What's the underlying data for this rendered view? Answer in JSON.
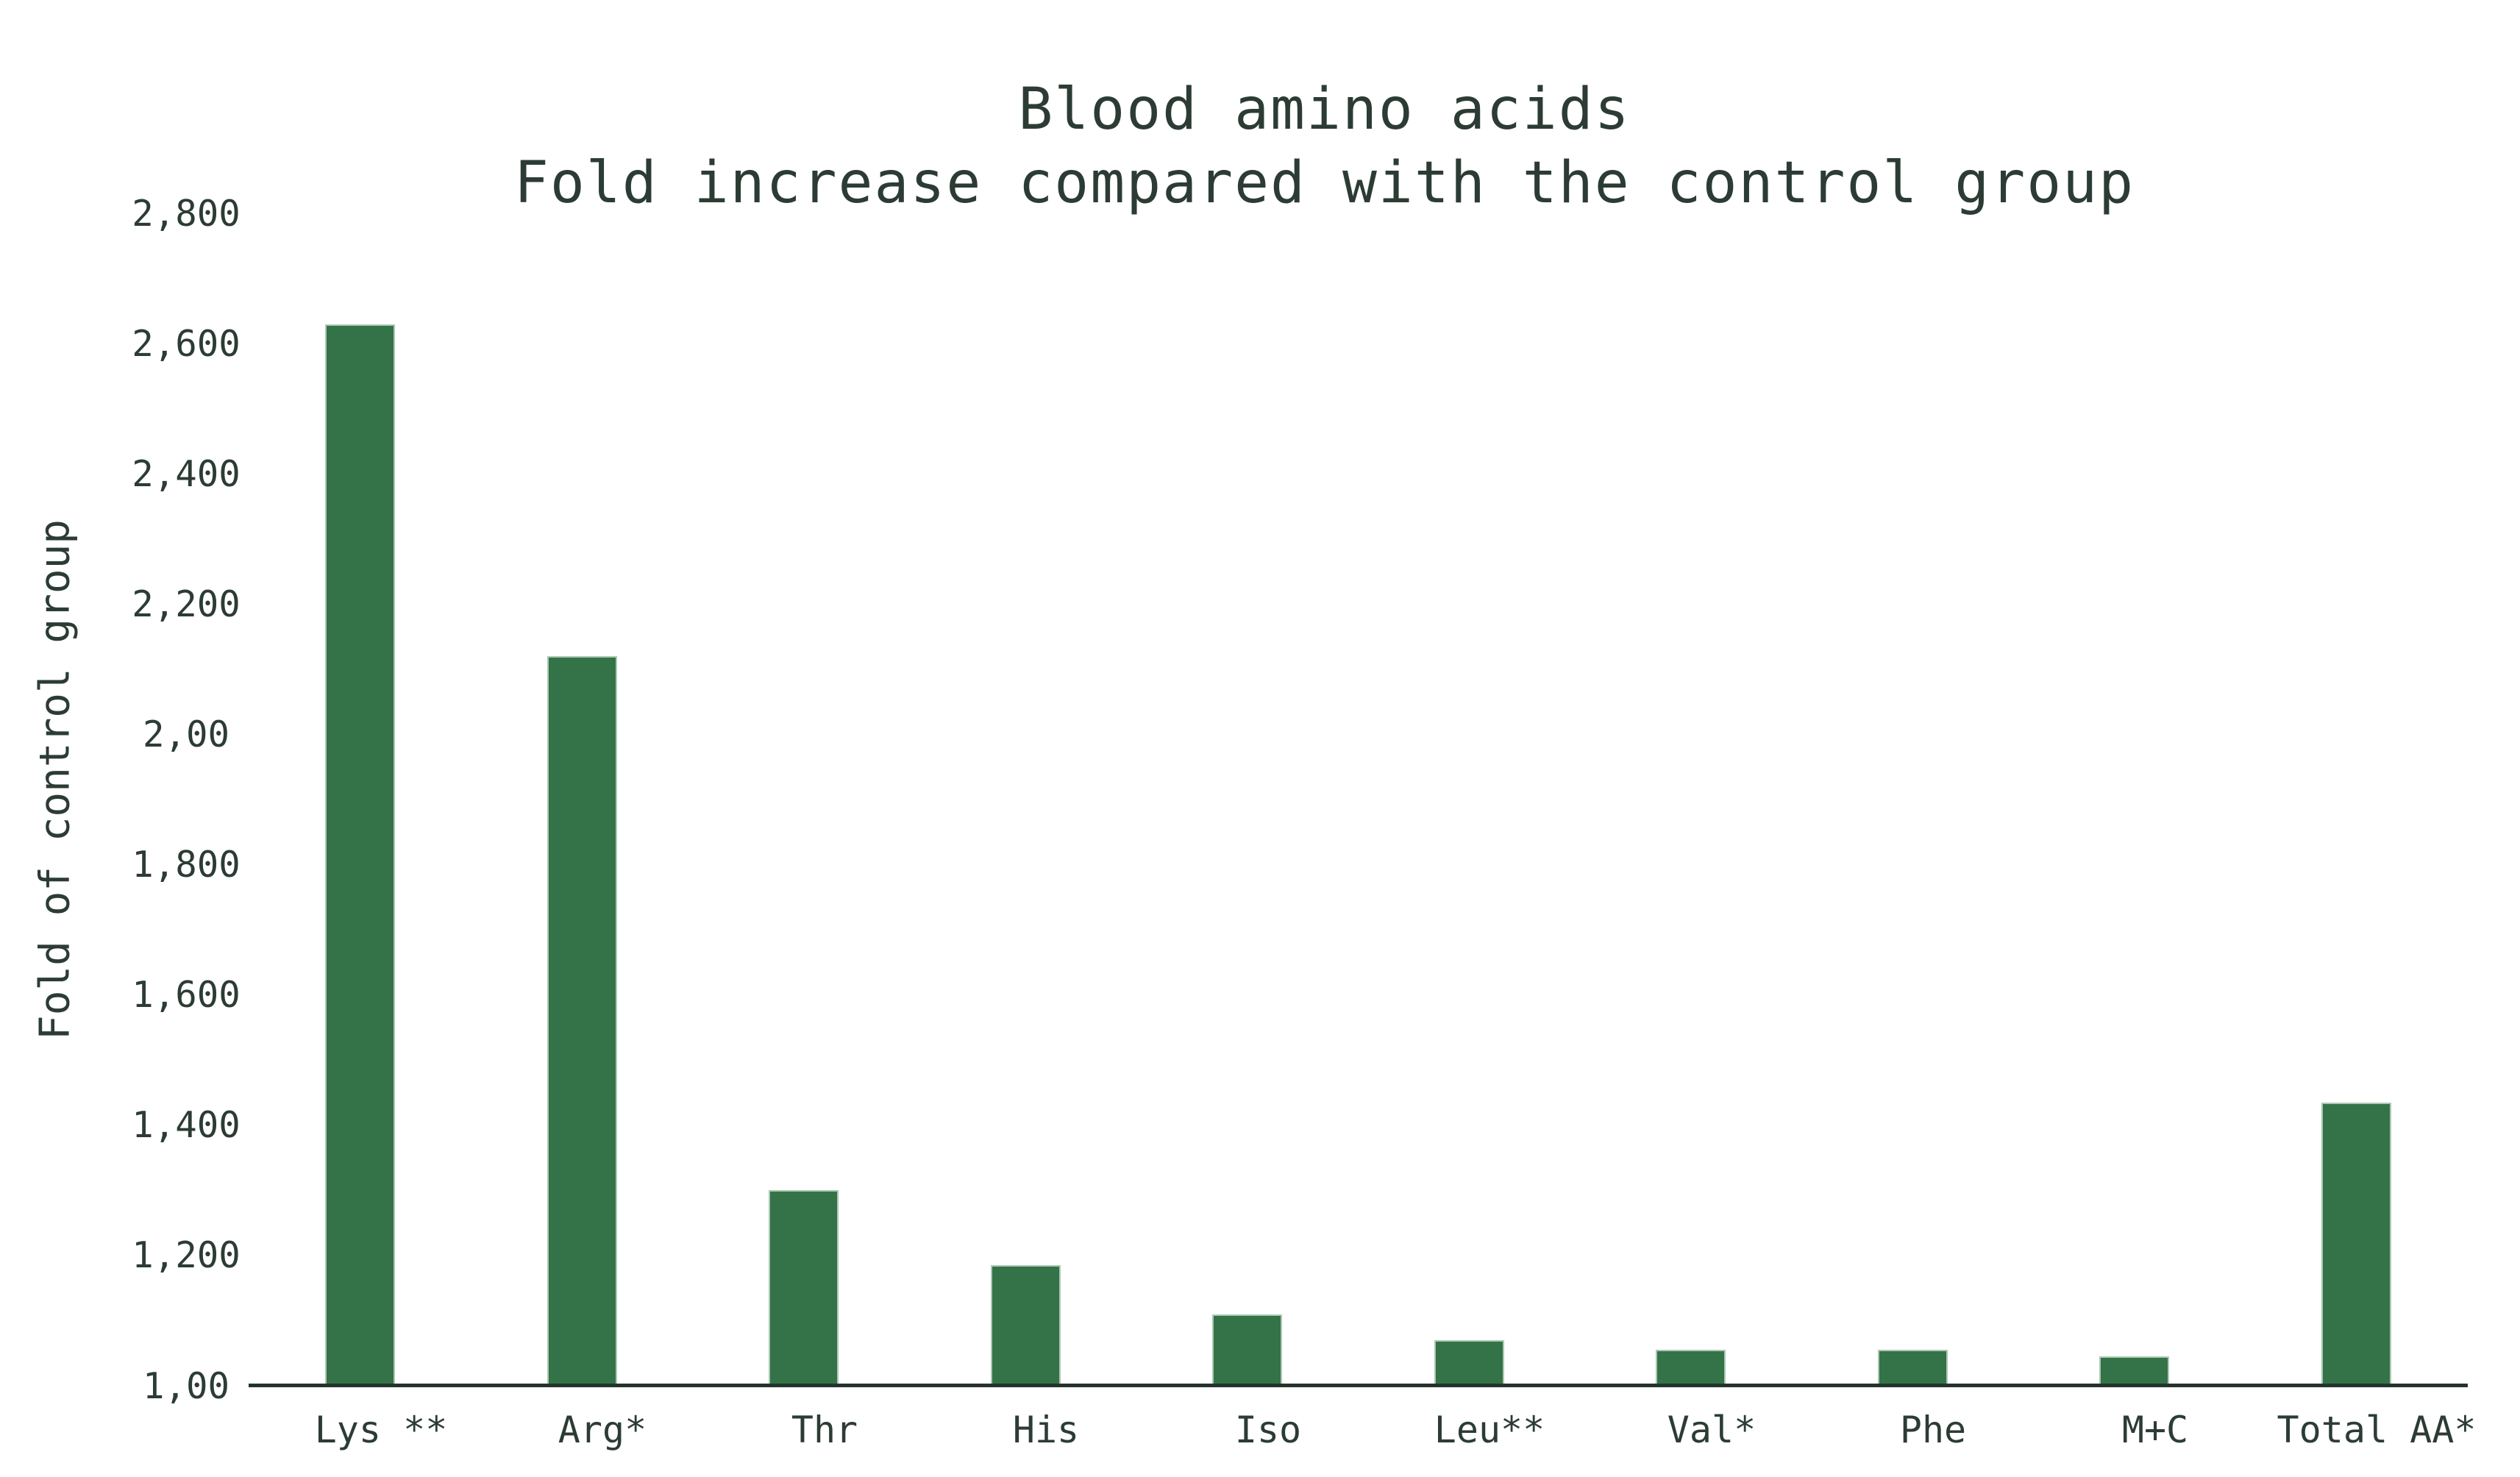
{
  "chart_data": {
    "type": "bar",
    "title": "Blood amino acids",
    "subtitle": "Fold increase compared with the control group",
    "ylabel": "Fold of control group",
    "xlabel": "",
    "categories": [
      "Lys **",
      "Arg*",
      "Thr",
      "His",
      "Iso",
      "Leu**",
      "Val*",
      "Phe",
      "M+C",
      "Total AA*"
    ],
    "values": [
      2630,
      2120,
      1300,
      1185,
      1110,
      1070,
      1055,
      1055,
      1045,
      1435
    ],
    "ylim": [
      1000,
      2800
    ],
    "ytick_step": 200,
    "ytick_labels_top_to_bottom": [
      "2,800",
      "2,600",
      "2,400",
      "2,200",
      "2,00",
      "1,800",
      "1,600",
      "1,400",
      "1,200",
      "1,00"
    ],
    "grid": false,
    "legend_position": "none",
    "colors": {
      "bar_fill": "#337347",
      "bar_edge": "#adc7b5",
      "text": "#2c3c34",
      "axis_line": "#25332c",
      "background": "#ffffff"
    }
  }
}
